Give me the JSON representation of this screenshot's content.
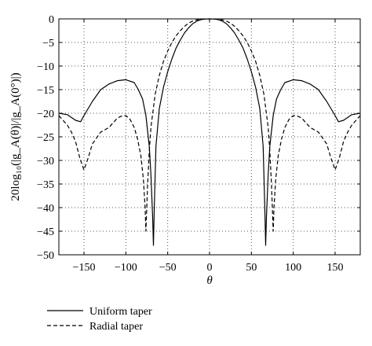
{
  "chart_data": {
    "type": "line",
    "xlabel": "θ",
    "ylabel": "20log₁₀(|g_A(θ)|/|g_A(0°)|)",
    "xlim": [
      -180,
      180
    ],
    "ylim": [
      -50,
      0
    ],
    "xticks": [
      -150,
      -100,
      -50,
      0,
      50,
      100,
      150
    ],
    "yticks": [
      0,
      -5,
      -10,
      -15,
      -20,
      -25,
      -30,
      -35,
      -40,
      -45,
      -50
    ],
    "xtick_labels": [
      "−150",
      "−100",
      "−50",
      "0",
      "50",
      "100",
      "150"
    ],
    "ytick_labels": [
      "0",
      "−5",
      "−10",
      "−15",
      "−20",
      "−25",
      "−30",
      "−35",
      "−40",
      "−45",
      "−50"
    ],
    "grid": true,
    "legend_position": "below",
    "series": [
      {
        "name": "Uniform taper",
        "style": "solid",
        "color": "#000000",
        "x": [
          -180,
          -170,
          -160,
          -154,
          -150,
          -140,
          -130,
          -120,
          -110,
          -100,
          -90,
          -85,
          -80,
          -76,
          -72,
          -70,
          -68,
          -67,
          -66,
          -64,
          -60,
          -55,
          -50,
          -45,
          -40,
          -35,
          -30,
          -25,
          -20,
          -15,
          -10,
          -5,
          0,
          5,
          10,
          15,
          20,
          25,
          30,
          35,
          40,
          45,
          50,
          55,
          60,
          64,
          66,
          67,
          68,
          70,
          72,
          76,
          80,
          85,
          90,
          100,
          110,
          120,
          130,
          140,
          150,
          154,
          160,
          170,
          180
        ],
        "y": [
          -20.0,
          -20.3,
          -21.5,
          -21.8,
          -20.5,
          -17.5,
          -15.0,
          -13.8,
          -13.1,
          -12.9,
          -13.5,
          -15.0,
          -17.0,
          -20.5,
          -27.0,
          -33.0,
          -42.0,
          -48.0,
          -40.0,
          -27.0,
          -19.0,
          -14.5,
          -11.2,
          -8.5,
          -6.2,
          -4.5,
          -3.0,
          -1.9,
          -1.0,
          -0.45,
          -0.15,
          -0.03,
          0,
          -0.03,
          -0.15,
          -0.45,
          -1.0,
          -1.9,
          -3.0,
          -4.5,
          -6.2,
          -8.5,
          -11.2,
          -14.5,
          -19.0,
          -27.0,
          -40.0,
          -48.0,
          -42.0,
          -33.0,
          -27.0,
          -20.5,
          -17.0,
          -15.0,
          -13.5,
          -12.9,
          -13.1,
          -13.8,
          -15.0,
          -17.5,
          -20.5,
          -21.8,
          -21.5,
          -20.3,
          -20.0
        ]
      },
      {
        "name": "Radial taper",
        "style": "dashed",
        "color": "#000000",
        "x": [
          -180,
          -175,
          -170,
          -165,
          -160,
          -155,
          -150,
          -145,
          -140,
          -130,
          -120,
          -115,
          -110,
          -105,
          -100,
          -95,
          -90,
          -86,
          -82,
          -79,
          -77,
          -76,
          -75,
          -74,
          -72,
          -70,
          -65,
          -60,
          -55,
          -50,
          -45,
          -40,
          -35,
          -30,
          -25,
          -20,
          -15,
          -10,
          -5,
          0,
          5,
          10,
          15,
          20,
          25,
          30,
          35,
          40,
          45,
          50,
          55,
          60,
          65,
          70,
          72,
          74,
          75,
          76,
          77,
          79,
          82,
          86,
          90,
          95,
          100,
          105,
          110,
          115,
          120,
          130,
          140,
          145,
          150,
          155,
          160,
          165,
          170,
          175,
          180
        ],
        "y": [
          -20.5,
          -21.5,
          -22.5,
          -24.0,
          -26.0,
          -29.5,
          -32.0,
          -29.5,
          -26.5,
          -24.0,
          -23.0,
          -22.0,
          -21.0,
          -20.6,
          -20.5,
          -21.3,
          -23.0,
          -25.5,
          -29.0,
          -34.0,
          -40.0,
          -45.0,
          -40.0,
          -35.0,
          -28.0,
          -23.0,
          -16.0,
          -12.0,
          -9.0,
          -6.8,
          -5.0,
          -3.6,
          -2.5,
          -1.6,
          -0.9,
          -0.45,
          -0.2,
          -0.06,
          -0.01,
          0,
          -0.01,
          -0.06,
          -0.2,
          -0.45,
          -0.9,
          -1.6,
          -2.5,
          -3.6,
          -5.0,
          -6.8,
          -9.0,
          -12.0,
          -16.0,
          -23.0,
          -28.0,
          -35.0,
          -40.0,
          -45.0,
          -40.0,
          -34.0,
          -29.0,
          -25.5,
          -23.0,
          -21.3,
          -20.5,
          -20.6,
          -21.0,
          -22.0,
          -23.0,
          -24.0,
          -26.5,
          -29.5,
          -32.0,
          -29.5,
          -26.0,
          -24.0,
          -22.5,
          -21.5,
          -20.5
        ]
      }
    ]
  }
}
